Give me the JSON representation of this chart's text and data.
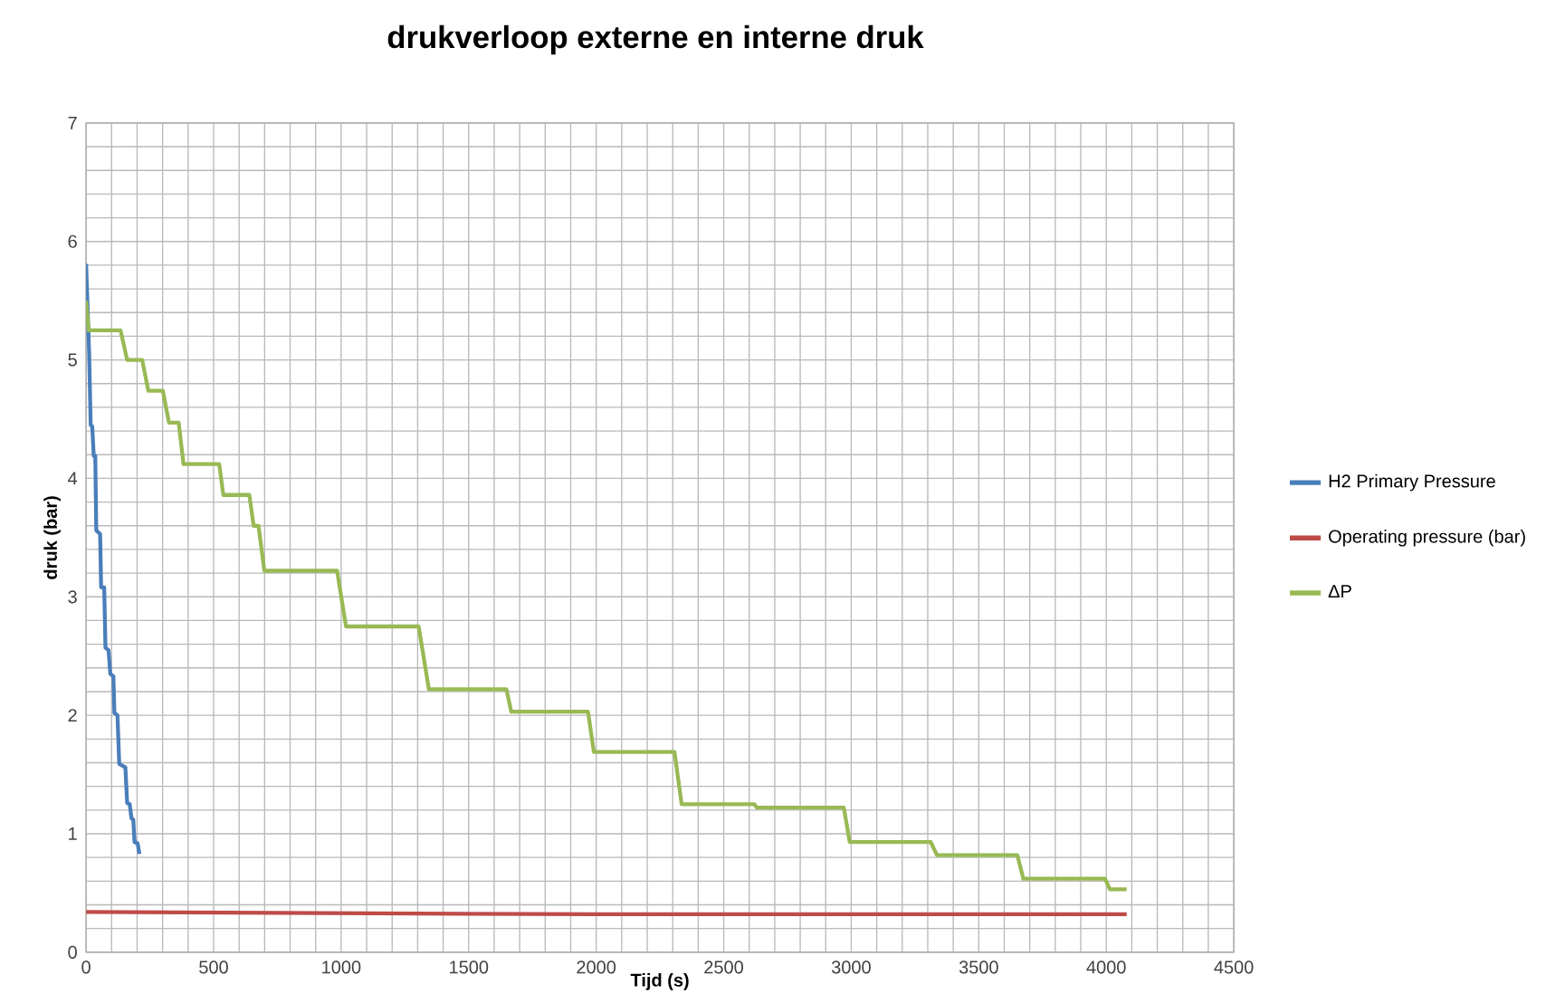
{
  "chart_data": {
    "type": "line",
    "title": "drukverloop externe en interne druk",
    "xlabel": "Tijd (s)",
    "ylabel": "druk (bar)",
    "xlim": [
      0,
      4500
    ],
    "ylim": [
      0,
      7
    ],
    "xticks": [
      0,
      500,
      1000,
      1500,
      2000,
      2500,
      3000,
      3500,
      4000,
      4500
    ],
    "yticks": [
      0,
      1,
      2,
      3,
      4,
      5,
      6,
      7
    ],
    "grid": true,
    "legend": "right",
    "marker": "none",
    "line_style": "solid",
    "series": [
      {
        "name": "H2 Primary Pressure",
        "color": "#4a7ebb",
        "x": [
          0,
          5,
          12,
          18,
          24,
          30,
          36,
          40,
          55,
          59,
          71,
          76,
          88,
          95,
          107,
          111,
          123,
          130,
          154,
          161,
          171,
          178,
          185,
          190,
          202,
          209
        ],
        "values": [
          5.81,
          5.5,
          5.05,
          4.45,
          4.44,
          4.19,
          4.19,
          3.56,
          3.53,
          3.08,
          3.08,
          2.57,
          2.55,
          2.35,
          2.33,
          2.02,
          2.0,
          1.59,
          1.56,
          1.26,
          1.25,
          1.13,
          1.12,
          0.93,
          0.92,
          0.83
        ]
      },
      {
        "name": "Operating pressure (bar)",
        "color": "#be4b48",
        "x": [
          0,
          1000,
          2000,
          4080
        ],
        "values": [
          0.34,
          0.33,
          0.32,
          0.32
        ]
      },
      {
        "name": "ΔP",
        "color": "#98b954",
        "x": [
          0,
          10,
          135,
          161,
          220,
          244,
          301,
          325,
          363,
          382,
          522,
          538,
          640,
          657,
          676,
          699,
          984,
          1019,
          1304,
          1344,
          1648,
          1667,
          1968,
          1991,
          2307,
          2335,
          2620,
          2630,
          2971,
          2994,
          3312,
          3336,
          3651,
          3675,
          3995,
          4014,
          4080
        ],
        "values": [
          5.5,
          5.25,
          5.25,
          5.0,
          5.0,
          4.74,
          4.74,
          4.47,
          4.47,
          4.12,
          4.12,
          3.86,
          3.86,
          3.6,
          3.6,
          3.22,
          3.22,
          2.75,
          2.75,
          2.22,
          2.22,
          2.03,
          2.03,
          1.69,
          1.69,
          1.25,
          1.25,
          1.22,
          1.22,
          0.93,
          0.93,
          0.82,
          0.82,
          0.62,
          0.62,
          0.53,
          0.53
        ]
      }
    ]
  }
}
